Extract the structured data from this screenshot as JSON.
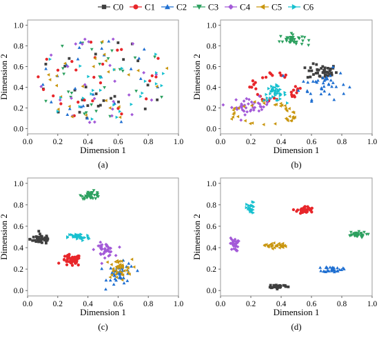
{
  "colors": {
    "C0": "#3f3f3f",
    "C1": "#e8262a",
    "C2": "#1f6fd1",
    "C3": "#2ca05f",
    "C4": "#a35ad8",
    "C5": "#c9960f",
    "C6": "#17c0cf"
  },
  "legend": {
    "entries": [
      {
        "label": "C0",
        "marker": "square",
        "color": "#3f3f3f"
      },
      {
        "label": "C1",
        "marker": "circle",
        "color": "#e8262a"
      },
      {
        "label": "C2",
        "marker": "triangle-up",
        "color": "#1f6fd1"
      },
      {
        "label": "C3",
        "marker": "triangle-down",
        "color": "#2ca05f"
      },
      {
        "label": "C4",
        "marker": "diamond",
        "color": "#a35ad8"
      },
      {
        "label": "C5",
        "marker": "triangle-left",
        "color": "#c9960f"
      },
      {
        "label": "C6",
        "marker": "triangle-right",
        "color": "#17c0cf"
      }
    ]
  },
  "chart_data": [
    {
      "type": "scatter",
      "panel_label": "(a)",
      "xlabel": "Dimension 1",
      "ylabel": "Dimension 2",
      "xlim": [
        0.0,
        1.0
      ],
      "ylim": [
        -0.05,
        1.05
      ],
      "xticks": [
        "0.0",
        "0.2",
        "0.4",
        "0.6",
        "0.8",
        "1.0"
      ],
      "yticks": [
        "0.0",
        "0.2",
        "0.4",
        "0.6",
        "0.8",
        "1.0"
      ],
      "grid": false,
      "series": [
        {
          "name": "C0",
          "clusters": [
            {
              "cx": 0.5,
              "cy": 0.47,
              "rx": 0.42,
              "ry": 0.42,
              "n": 26
            }
          ]
        },
        {
          "name": "C1",
          "clusters": [
            {
              "cx": 0.5,
              "cy": 0.47,
              "rx": 0.42,
              "ry": 0.42,
              "n": 26
            }
          ]
        },
        {
          "name": "C2",
          "clusters": [
            {
              "cx": 0.5,
              "cy": 0.47,
              "rx": 0.42,
              "ry": 0.42,
              "n": 26
            }
          ]
        },
        {
          "name": "C3",
          "clusters": [
            {
              "cx": 0.5,
              "cy": 0.47,
              "rx": 0.42,
              "ry": 0.42,
              "n": 26
            }
          ]
        },
        {
          "name": "C4",
          "clusters": [
            {
              "cx": 0.5,
              "cy": 0.47,
              "rx": 0.42,
              "ry": 0.42,
              "n": 26
            }
          ]
        },
        {
          "name": "C5",
          "clusters": [
            {
              "cx": 0.5,
              "cy": 0.47,
              "rx": 0.42,
              "ry": 0.42,
              "n": 26
            }
          ]
        },
        {
          "name": "C6",
          "clusters": [
            {
              "cx": 0.5,
              "cy": 0.47,
              "rx": 0.42,
              "ry": 0.42,
              "n": 26
            }
          ]
        }
      ]
    },
    {
      "type": "scatter",
      "panel_label": "(b)",
      "xlabel": "Dimension 1",
      "ylabel": "Dimension 2",
      "xlim": [
        0.0,
        1.0
      ],
      "ylim": [
        -0.05,
        1.05
      ],
      "xticks": [
        "0.0",
        "0.2",
        "0.4",
        "0.6",
        "0.8",
        "1.0"
      ],
      "yticks": [
        "0.0",
        "0.2",
        "0.4",
        "0.6",
        "0.8",
        "1.0"
      ],
      "grid": false,
      "series": [
        {
          "name": "C0",
          "clusters": [
            {
              "cx": 0.67,
              "cy": 0.55,
              "rx": 0.11,
              "ry": 0.08,
              "n": 45
            }
          ]
        },
        {
          "name": "C1",
          "clusters": [
            {
              "cx": 0.36,
              "cy": 0.4,
              "rx": 0.16,
              "ry": 0.14,
              "n": 40,
              "ring": true
            }
          ]
        },
        {
          "name": "C2",
          "clusters": [
            {
              "cx": 0.68,
              "cy": 0.43,
              "rx": 0.17,
              "ry": 0.16,
              "n": 40
            }
          ]
        },
        {
          "name": "C3",
          "clusters": [
            {
              "cx": 0.47,
              "cy": 0.86,
              "rx": 0.09,
              "ry": 0.06,
              "n": 40
            }
          ]
        },
        {
          "name": "C4",
          "clusters": [
            {
              "cx": 0.2,
              "cy": 0.22,
              "rx": 0.14,
              "ry": 0.09,
              "n": 40
            }
          ]
        },
        {
          "name": "C5",
          "clusters": [
            {
              "cx": 0.28,
              "cy": 0.14,
              "rx": 0.22,
              "ry": 0.12,
              "n": 40,
              "ring": true
            }
          ]
        },
        {
          "name": "C6",
          "clusters": [
            {
              "cx": 0.36,
              "cy": 0.34,
              "rx": 0.08,
              "ry": 0.08,
              "n": 40
            }
          ]
        }
      ]
    },
    {
      "type": "scatter",
      "panel_label": "(c)",
      "xlabel": "Dimension 1",
      "ylabel": "Dimension 2",
      "xlim": [
        0.0,
        1.0
      ],
      "ylim": [
        -0.05,
        1.05
      ],
      "xticks": [
        "0.0",
        "0.2",
        "0.4",
        "0.6",
        "0.8",
        "1.0"
      ],
      "yticks": [
        "0.0",
        "0.2",
        "0.4",
        "0.6",
        "0.8",
        "1.0"
      ],
      "grid": false,
      "series": [
        {
          "name": "C0",
          "clusters": [
            {
              "cx": 0.09,
              "cy": 0.48,
              "rx": 0.08,
              "ry": 0.05,
              "n": 45
            }
          ]
        },
        {
          "name": "C1",
          "clusters": [
            {
              "cx": 0.29,
              "cy": 0.28,
              "rx": 0.07,
              "ry": 0.06,
              "n": 45
            }
          ]
        },
        {
          "name": "C2",
          "clusters": [
            {
              "cx": 0.62,
              "cy": 0.15,
              "rx": 0.1,
              "ry": 0.12,
              "n": 45
            }
          ]
        },
        {
          "name": "C3",
          "clusters": [
            {
              "cx": 0.42,
              "cy": 0.89,
              "rx": 0.07,
              "ry": 0.04,
              "n": 40
            }
          ]
        },
        {
          "name": "C4",
          "clusters": [
            {
              "cx": 0.51,
              "cy": 0.38,
              "rx": 0.07,
              "ry": 0.07,
              "n": 40
            }
          ]
        },
        {
          "name": "C5",
          "clusters": [
            {
              "cx": 0.6,
              "cy": 0.2,
              "rx": 0.1,
              "ry": 0.1,
              "n": 40
            }
          ]
        },
        {
          "name": "C6",
          "clusters": [
            {
              "cx": 0.34,
              "cy": 0.5,
              "rx": 0.08,
              "ry": 0.04,
              "n": 40
            }
          ]
        }
      ]
    },
    {
      "type": "scatter",
      "panel_label": "(d)",
      "xlabel": "Dimension 1",
      "ylabel": "Dimension 2",
      "xlim": [
        0.0,
        1.0
      ],
      "ylim": [
        -0.05,
        1.05
      ],
      "xticks": [
        "0.0",
        "0.2",
        "0.4",
        "0.6",
        "0.8",
        "1.0"
      ],
      "yticks": [
        "0.0",
        "0.2",
        "0.4",
        "0.6",
        "0.8",
        "1.0"
      ],
      "grid": false,
      "series": [
        {
          "name": "C0",
          "clusters": [
            {
              "cx": 0.38,
              "cy": 0.04,
              "rx": 0.07,
              "ry": 0.02,
              "n": 35
            }
          ]
        },
        {
          "name": "C1",
          "clusters": [
            {
              "cx": 0.56,
              "cy": 0.75,
              "rx": 0.06,
              "ry": 0.04,
              "n": 35
            }
          ]
        },
        {
          "name": "C2",
          "clusters": [
            {
              "cx": 0.74,
              "cy": 0.2,
              "rx": 0.07,
              "ry": 0.03,
              "n": 35
            }
          ]
        },
        {
          "name": "C3",
          "clusters": [
            {
              "cx": 0.89,
              "cy": 0.52,
              "rx": 0.08,
              "ry": 0.03,
              "n": 35
            }
          ]
        },
        {
          "name": "C4",
          "clusters": [
            {
              "cx": 0.09,
              "cy": 0.43,
              "rx": 0.03,
              "ry": 0.07,
              "n": 30
            }
          ]
        },
        {
          "name": "C5",
          "clusters": [
            {
              "cx": 0.36,
              "cy": 0.42,
              "rx": 0.08,
              "ry": 0.03,
              "n": 30
            }
          ]
        },
        {
          "name": "C6",
          "clusters": [
            {
              "cx": 0.2,
              "cy": 0.76,
              "rx": 0.03,
              "ry": 0.07,
              "n": 30
            }
          ]
        }
      ]
    }
  ]
}
